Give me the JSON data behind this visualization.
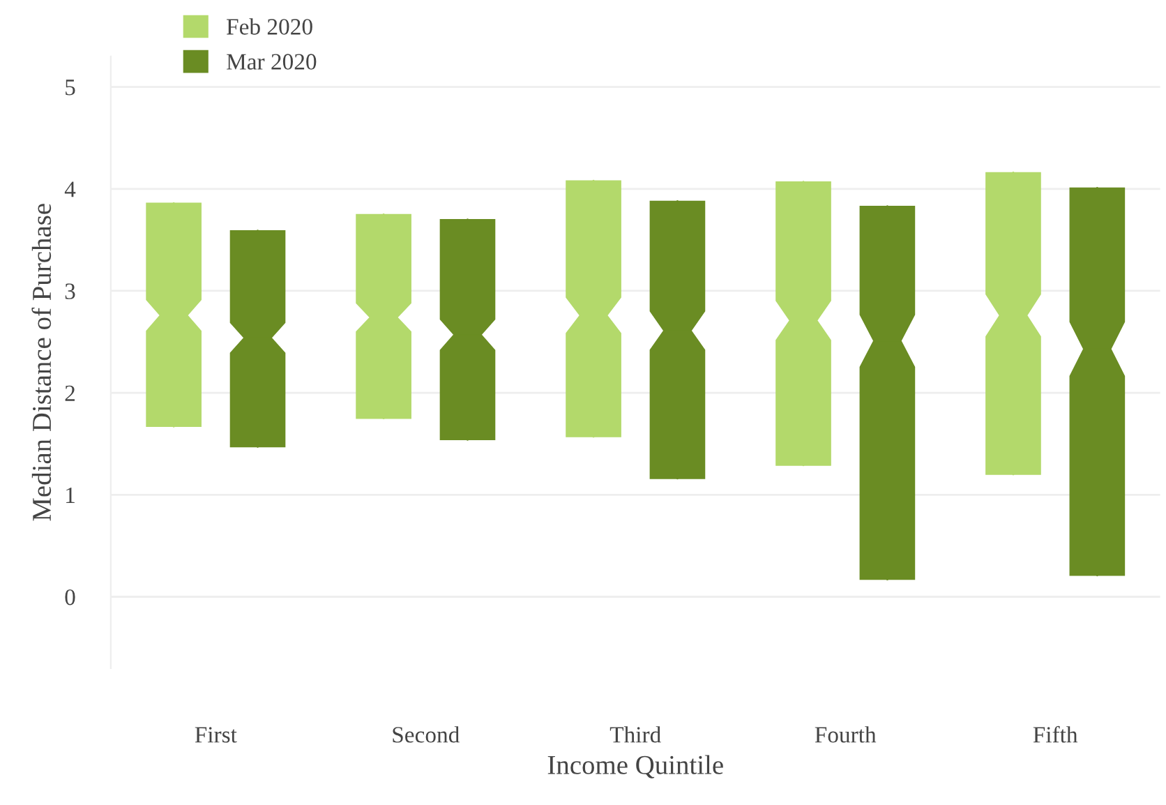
{
  "chart_data": {
    "type": "box",
    "xlabel": "Income Quintile",
    "ylabel": "Median Distance of Purchase",
    "categories": [
      "First",
      "Second",
      "Third",
      "Fourth",
      "Fifth"
    ],
    "series": [
      {
        "name": "Feb 2020",
        "color": "#b3d96b",
        "boxes": [
          {
            "low": 1.67,
            "q1": 1.67,
            "median": 2.76,
            "q3": 3.86,
            "high": 3.86
          },
          {
            "low": 1.75,
            "q1": 1.75,
            "median": 2.74,
            "q3": 3.75,
            "high": 3.75
          },
          {
            "low": 1.57,
            "q1": 1.57,
            "median": 2.76,
            "q3": 4.08,
            "high": 4.08
          },
          {
            "low": 1.29,
            "q1": 1.29,
            "median": 2.71,
            "q3": 4.07,
            "high": 4.07
          },
          {
            "low": 1.2,
            "q1": 1.2,
            "median": 2.76,
            "q3": 4.16,
            "high": 4.16
          }
        ]
      },
      {
        "name": "Mar 2020",
        "color": "#6a8c23",
        "boxes": [
          {
            "low": 1.47,
            "q1": 1.47,
            "median": 2.54,
            "q3": 3.59,
            "high": 3.59
          },
          {
            "low": 1.54,
            "q1": 1.54,
            "median": 2.57,
            "q3": 3.7,
            "high": 3.7
          },
          {
            "low": 1.16,
            "q1": 1.16,
            "median": 2.61,
            "q3": 3.88,
            "high": 3.88
          },
          {
            "low": 0.17,
            "q1": 0.17,
            "median": 2.51,
            "q3": 3.83,
            "high": 3.83
          },
          {
            "low": 0.21,
            "q1": 0.21,
            "median": 2.43,
            "q3": 4.01,
            "high": 4.01
          }
        ]
      }
    ],
    "ylim": [
      -0.7,
      5.3
    ],
    "yticks": [
      0,
      1,
      2,
      3,
      4,
      5
    ],
    "grid": "y",
    "legend": "top left"
  }
}
